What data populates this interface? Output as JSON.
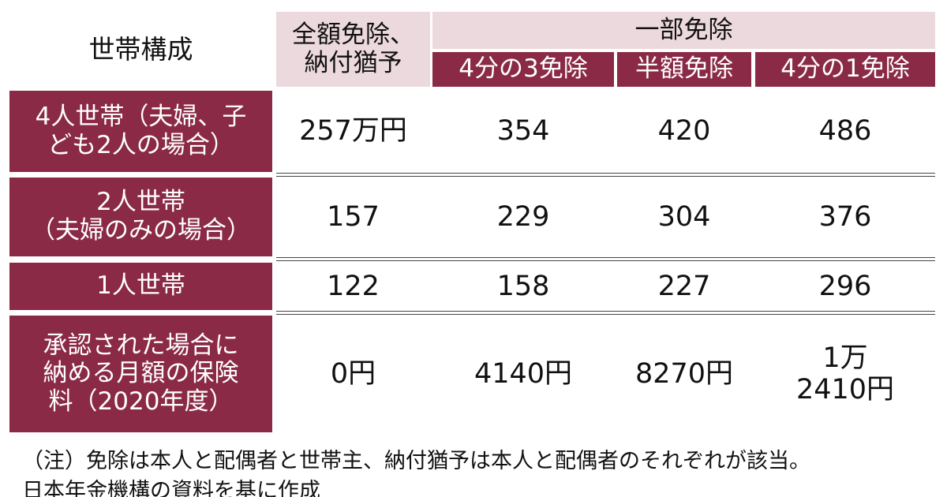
{
  "header": {
    "household": "世帯構成",
    "full": [
      "全額免除、",
      "納付猶予"
    ],
    "partial": "一部免除",
    "sub": [
      "4分の3免除",
      "半額免除",
      "4分の1免除"
    ]
  },
  "rows": [
    {
      "label": [
        "4人世帯（夫婦、子",
        "ども2人の場合）"
      ],
      "cells": [
        [
          "257万円"
        ],
        [
          "354"
        ],
        [
          "420"
        ],
        [
          "486"
        ]
      ]
    },
    {
      "label": [
        "2人世帯",
        "（夫婦のみの場合）"
      ],
      "cells": [
        [
          "157"
        ],
        [
          "229"
        ],
        [
          "304"
        ],
        [
          "376"
        ]
      ]
    },
    {
      "label": [
        "1人世帯"
      ],
      "cells": [
        [
          "122"
        ],
        [
          "158"
        ],
        [
          "227"
        ],
        [
          "296"
        ]
      ]
    },
    {
      "label": [
        "承認された場合に",
        "納める月額の保険",
        "料（2020年度）"
      ],
      "cells": [
        [
          "0円"
        ],
        [
          "4140円"
        ],
        [
          "8270円"
        ],
        [
          "1万",
          "2410円"
        ]
      ]
    }
  ],
  "note": [
    "（注）免除は本人と配偶者と世帯主、納付猶予は本人と配偶者のそれぞれが該当。",
    "日本年金機構の資料を基に作成"
  ]
}
